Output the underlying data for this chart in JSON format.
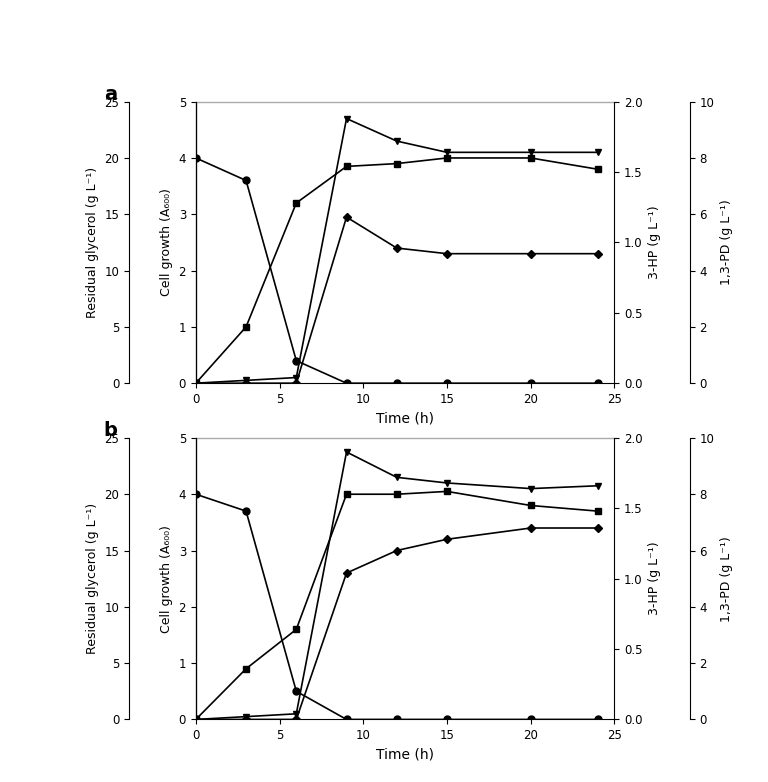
{
  "panel_a": {
    "label": "a",
    "time": [
      0,
      3,
      6,
      9,
      12,
      15,
      20,
      24
    ],
    "glycerol": [
      20.0,
      18.0,
      2.0,
      0.0,
      0.0,
      0.0,
      0.0,
      0.0
    ],
    "cell_growth": [
      0.0,
      1.0,
      3.2,
      3.85,
      3.9,
      4.0,
      4.0,
      3.8
    ],
    "hp3": [
      0.0,
      0.0,
      0.0,
      1.18,
      0.96,
      0.92,
      0.92,
      0.92
    ],
    "pd13": [
      0.0,
      0.1,
      0.2,
      9.4,
      8.6,
      8.2,
      8.2,
      8.2
    ]
  },
  "panel_b": {
    "label": "b",
    "time": [
      0,
      3,
      6,
      9,
      12,
      15,
      20,
      24
    ],
    "glycerol": [
      20.0,
      18.5,
      2.5,
      0.0,
      0.0,
      0.0,
      0.0,
      0.0
    ],
    "cell_growth": [
      0.0,
      0.9,
      1.6,
      4.0,
      4.0,
      4.05,
      3.8,
      3.7
    ],
    "hp3": [
      0.0,
      0.0,
      0.0,
      1.04,
      1.2,
      1.28,
      1.36,
      1.36
    ],
    "pd13": [
      0.0,
      0.1,
      0.2,
      9.5,
      8.6,
      8.4,
      8.2,
      8.3
    ]
  },
  "glycerol_ylim": [
    0,
    25
  ],
  "glycerol_yticks": [
    0,
    5,
    10,
    15,
    20,
    25
  ],
  "cell_ylim": [
    0,
    5
  ],
  "cell_yticks": [
    0,
    1,
    2,
    3,
    4,
    5
  ],
  "hp3_ylim": [
    0,
    2.0
  ],
  "hp3_yticks": [
    0.0,
    0.5,
    1.0,
    1.5,
    2.0
  ],
  "pd13_ylim": [
    0,
    10
  ],
  "pd13_yticks": [
    0,
    2,
    4,
    6,
    8,
    10
  ],
  "xlim": [
    0,
    25
  ],
  "xticks": [
    0,
    5,
    10,
    15,
    20,
    25
  ],
  "xlabel": "Time (h)",
  "glycerol_ylabel": "Residual glycerol (g L⁻¹)",
  "cell_ylabel": "Cell growth (A₆₀₀)",
  "hp3_ylabel": "3-HP (g L⁻¹)",
  "pd13_ylabel": "1,3-PD (g L⁻¹)",
  "lw": 1.2,
  "ms": 5,
  "figsize": [
    7.68,
    7.82
  ],
  "dpi": 100
}
